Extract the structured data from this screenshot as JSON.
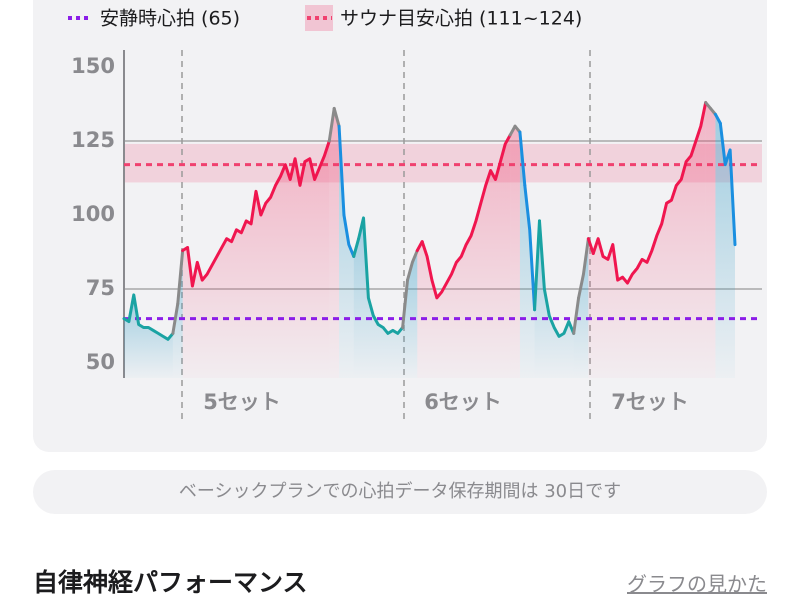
{
  "chart_data": {
    "type": "line",
    "legend": [
      {
        "label": "安静時心拍 (65)",
        "color": "#8b1ee8"
      },
      {
        "label": "サウナ目安心拍 (111~124)",
        "color": "#f0416f"
      }
    ],
    "resting": 65,
    "target_band": [
      111,
      124
    ],
    "target_line": 117,
    "ylim": [
      50,
      150
    ],
    "yticks": [
      50,
      75,
      100,
      125,
      150
    ],
    "reference_lines": [
      75,
      125
    ],
    "set_labels": [
      "5セット",
      "6セット",
      "7セット"
    ],
    "segments": [
      {
        "color": "#1aa3a3",
        "values": [
          65,
          64,
          73,
          63,
          62,
          62,
          61,
          60,
          59,
          58,
          60
        ]
      },
      {
        "color": "#8a8a8a",
        "values": [
          70,
          88
        ]
      },
      {
        "color": "#f0164f",
        "values": [
          89,
          76,
          84,
          78,
          80,
          83,
          86,
          89,
          92,
          91,
          95,
          94,
          98,
          97,
          108,
          100,
          104,
          106,
          110,
          113,
          117,
          112,
          119,
          110,
          118,
          119,
          112,
          116,
          120,
          125
        ]
      },
      {
        "color": "#8a8a8a",
        "values": [
          136,
          130
        ]
      },
      {
        "color": "#1a8fe0",
        "values": [
          100,
          90,
          86
        ]
      },
      {
        "color": "#1aa3a3",
        "values": [
          92,
          99,
          72,
          66,
          63,
          62,
          60,
          61,
          60,
          62
        ]
      },
      {
        "color": "#8a8a8a",
        "values": [
          78,
          84,
          88
        ]
      },
      {
        "color": "#f0164f",
        "values": [
          91,
          86,
          78,
          72,
          74,
          77,
          80,
          84,
          86,
          90,
          93,
          98,
          104,
          110,
          115,
          112,
          118,
          124,
          127
        ]
      },
      {
        "color": "#8a8a8a",
        "values": [
          130,
          128
        ]
      },
      {
        "color": "#1a8fe0",
        "values": [
          110,
          95,
          68
        ]
      },
      {
        "color": "#1aa3a3",
        "values": [
          98,
          75,
          66,
          62,
          59,
          60,
          64,
          60
        ]
      },
      {
        "color": "#8a8a8a",
        "values": [
          72,
          80,
          92
        ]
      },
      {
        "color": "#f0164f",
        "values": [
          87,
          92,
          86,
          85,
          90,
          78,
          79,
          77,
          80,
          82,
          85,
          84,
          88,
          93,
          97,
          104,
          105,
          110,
          112,
          118,
          120,
          125,
          130,
          138
        ]
      },
      {
        "color": "#8a8a8a",
        "values": [
          136,
          134
        ]
      },
      {
        "color": "#1a8fe0",
        "values": [
          131,
          117,
          122,
          90
        ]
      }
    ]
  },
  "notice": "ベーシックプランでの心拍データ保存期間は 30日です",
  "section": {
    "title": "自律神経パフォーマンス",
    "link": "グラフの見かた"
  }
}
